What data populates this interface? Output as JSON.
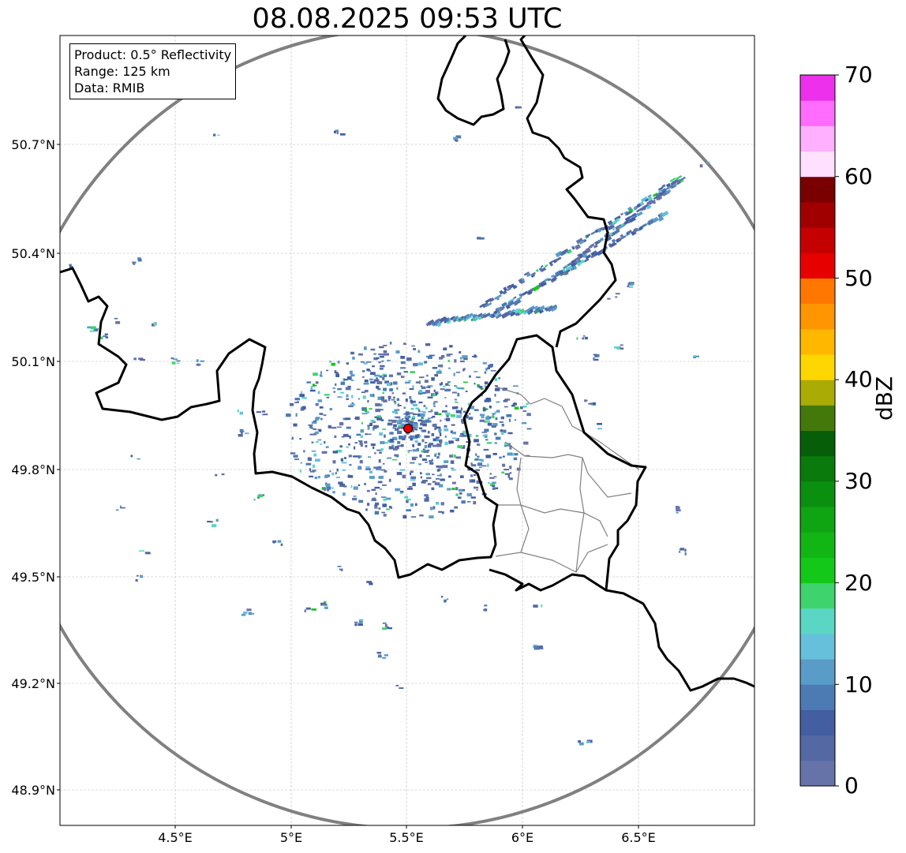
{
  "title": "08.08.2025 09:53 UTC",
  "info_box": {
    "product": "Product: 0.5° Reflectivity",
    "range": "Range: 125 km",
    "data": "Data: RMIB"
  },
  "map": {
    "lon_ticks": [
      "4.5°E",
      "5°E",
      "5.5°E",
      "6°E",
      "6.5°E"
    ],
    "lat_ticks": [
      "50.7°N",
      "50.4°N",
      "50.1°N",
      "49.8°N",
      "49.5°N",
      "49.2°N",
      "48.9°N"
    ],
    "radar_site_color": "#e00000",
    "range_ring_color": "#808080",
    "border_color": "#000000"
  },
  "colorbar": {
    "label": "dBZ",
    "ticks": [
      "0",
      "10",
      "20",
      "30",
      "40",
      "50",
      "60",
      "70"
    ],
    "colors": [
      "#6673a8",
      "#5468a3",
      "#435fa1",
      "#4c7ab3",
      "#589cc7",
      "#66c0dc",
      "#5cd6c4",
      "#3ed36c",
      "#14c819",
      "#11b614",
      "#0ea412",
      "#0b8f0e",
      "#097a0b",
      "#065f08",
      "#43780a",
      "#abab05",
      "#ffd700",
      "#ffb700",
      "#ff9500",
      "#ff7700",
      "#e60000",
      "#c40000",
      "#a00000",
      "#7a0000",
      "#ffe0ff",
      "#ffb0ff",
      "#ff6cff",
      "#ec30ec"
    ]
  }
}
